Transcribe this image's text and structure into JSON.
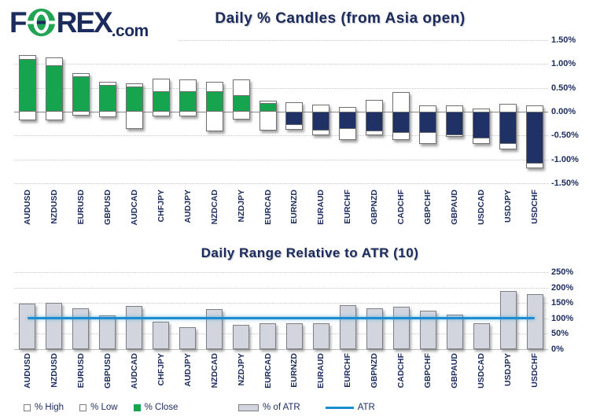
{
  "logo": {
    "f": "F",
    "rex": "REX",
    "com": ".com",
    "green": "#22a455",
    "navy": "#1b2b5e"
  },
  "colors": {
    "navy_text": "#1b2b5e",
    "candle_up": "#17a44f",
    "candle_down": "#203265",
    "bar_fill": "#d2d5de",
    "atr_line_blue": "#1c8dd0"
  },
  "chart_data": [
    {
      "type": "candlestick-bar",
      "title": "Daily % Candles (from Asia open)",
      "ylabel": "",
      "y_ticks": [
        "1.50%",
        "1.00%",
        "0.50%",
        "0.00%",
        "-0.50%",
        "-1.00%",
        "-1.50%"
      ],
      "ylim": [
        -1.5,
        1.5
      ],
      "grid": true,
      "legend_position": "bottom-left",
      "legend": [
        "% High",
        "% Low",
        "% Close"
      ],
      "categories": [
        "AUDUSD",
        "NZDUSD",
        "EURUSD",
        "GBPUSD",
        "AUDCAD",
        "CHFJPY",
        "AUDJPY",
        "NZDCAD",
        "NZDJPY",
        "EURCAD",
        "EURNZD",
        "EURAUD",
        "EURCHF",
        "GBPNZD",
        "CADCHF",
        "GBPCHF",
        "GBPAUD",
        "USDCAD",
        "USDJPY",
        "USDCHF"
      ],
      "series": [
        {
          "name": "% High",
          "values": [
            1.18,
            1.14,
            0.8,
            0.62,
            0.6,
            0.7,
            0.67,
            0.62,
            0.67,
            0.23,
            0.2,
            0.15,
            0.1,
            0.24,
            0.42,
            0.14,
            0.14,
            0.07,
            0.17,
            0.14
          ]
        },
        {
          "name": "% Low",
          "values": [
            -0.18,
            -0.18,
            -0.09,
            -0.12,
            -0.36,
            -0.1,
            -0.1,
            -0.42,
            -0.17,
            -0.4,
            -0.38,
            -0.5,
            -0.6,
            -0.49,
            -0.59,
            -0.67,
            -0.53,
            -0.67,
            -0.79,
            -1.19
          ]
        },
        {
          "name": "% Close",
          "values": [
            1.1,
            0.97,
            0.74,
            0.56,
            0.52,
            0.43,
            0.43,
            0.43,
            0.35,
            0.18,
            -0.28,
            -0.4,
            -0.37,
            -0.41,
            -0.45,
            -0.45,
            -0.49,
            -0.56,
            -0.67,
            -1.08
          ]
        }
      ]
    },
    {
      "type": "bar",
      "title": "Daily Range Relative to ATR (10)",
      "ylabel": "",
      "y_ticks": [
        "250%",
        "200%",
        "150%",
        "100%",
        "50%",
        "0%"
      ],
      "ylim": [
        0,
        250
      ],
      "grid": true,
      "legend_position": "bottom-center",
      "legend": [
        "% of ATR",
        "ATR"
      ],
      "categories": [
        "AUDUSD",
        "NZDUSD",
        "EURUSD",
        "GBPUSD",
        "AUDCAD",
        "CHFJPY",
        "AUDJPY",
        "NZDCAD",
        "NZDJPY",
        "EURCAD",
        "EURNZD",
        "EURAUD",
        "EURCHF",
        "GBPNZD",
        "CADCHF",
        "GBPCHF",
        "GBPAUD",
        "USDCAD",
        "USDJPY",
        "USDCHF"
      ],
      "series": [
        {
          "name": "% of ATR",
          "values": [
            147,
            150,
            132,
            109,
            141,
            89,
            72,
            130,
            80,
            85,
            83,
            83,
            142,
            132,
            139,
            125,
            111,
            83,
            188,
            178
          ]
        },
        {
          "name": "ATR",
          "type": "line",
          "value": 100
        }
      ]
    }
  ]
}
